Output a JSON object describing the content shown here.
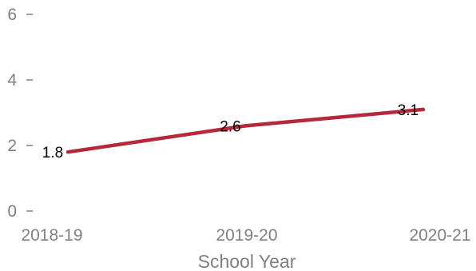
{
  "chart_data": {
    "type": "line",
    "categories": [
      "2018-19",
      "2019-20",
      "2020-21"
    ],
    "series": [
      {
        "values": [
          1.8,
          2.6,
          3.1
        ],
        "color": "#b5283a"
      }
    ],
    "y_ticks": [
      "0",
      "2",
      "4",
      "6"
    ],
    "ylim": [
      0,
      6
    ],
    "xlabel": "School Year",
    "ylabel": "",
    "title": "",
    "grid": false,
    "legend": "none",
    "data_labels": [
      "1.8",
      "2.6",
      "3.1"
    ]
  }
}
